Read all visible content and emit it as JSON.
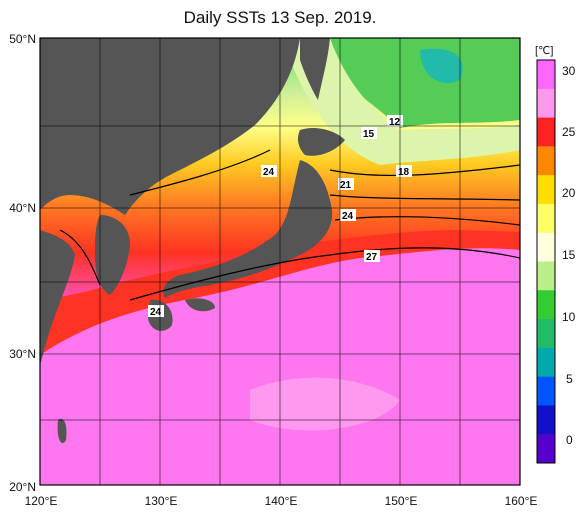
{
  "title": "Daily SSTs 13 Sep. 2019.",
  "unit_label": "[℃]",
  "lat_labels": [
    "50°N",
    "40°N",
    "30°N",
    "20°N"
  ],
  "lon_labels": [
    "120°E",
    "130°E",
    "140°E",
    "150°E",
    "160°E"
  ],
  "colorbar_ticks": [
    "30",
    "25",
    "20",
    "15",
    "10",
    "5",
    "0"
  ],
  "colorbar_colors": [
    "#ff66ff",
    "#ff99ee",
    "#ff2222",
    "#ff8800",
    "#ffdd00",
    "#ffff66",
    "#ffffdd",
    "#bbee88",
    "#33cc33",
    "#22bb66",
    "#00aaaa",
    "#0055ff",
    "#1111cc",
    "#5500cc"
  ],
  "contour_labels": [
    "12",
    "15",
    "18",
    "21",
    "24",
    "24",
    "27",
    "24"
  ],
  "colors": {
    "land": "#555555",
    "grid": "#000000",
    "sea_warm": "#ff66ee"
  }
}
